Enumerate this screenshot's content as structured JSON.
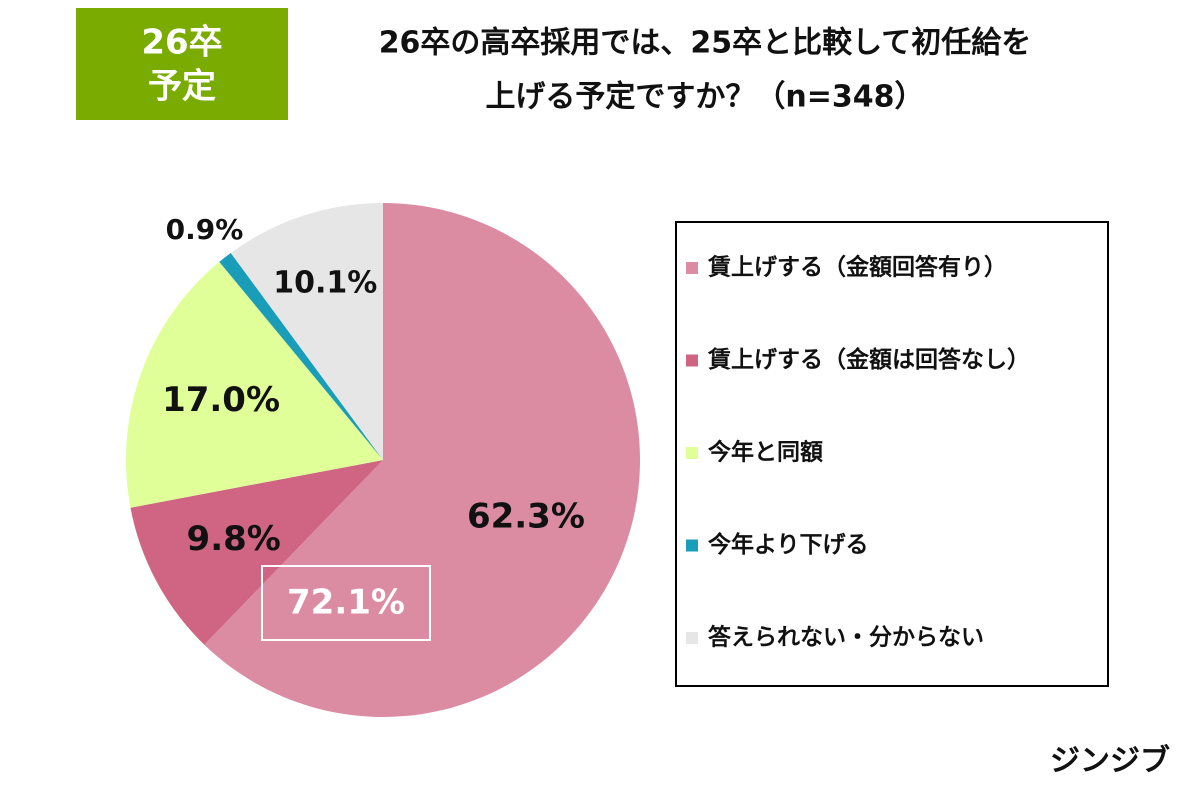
{
  "badge": [
    "26卒",
    "予定"
  ],
  "logo": "ジンジブ",
  "chart_data": {
    "type": "pie",
    "title": [
      "26卒の高卒採用では、25卒と比較して初任給を",
      "上げる予定ですか？（n=348）"
    ],
    "categories": [
      "賃上げする（金額回答有り）",
      "賃上げする（金額は回答なし）",
      "今年と同額",
      "今年より下げる",
      "答えられない・分からない"
    ],
    "values": [
      62.3,
      9.8,
      17.0,
      0.9,
      10.1
    ],
    "value_labels": [
      "62.3%",
      "9.8%",
      "17.0%",
      "0.9%",
      "10.1%"
    ],
    "colors": [
      "#db8ca2",
      "#cf6582",
      "#e0ff99",
      "#1a9db8",
      "#e6e6e6"
    ],
    "annotations": [
      "72.1%"
    ],
    "legend": "right"
  }
}
